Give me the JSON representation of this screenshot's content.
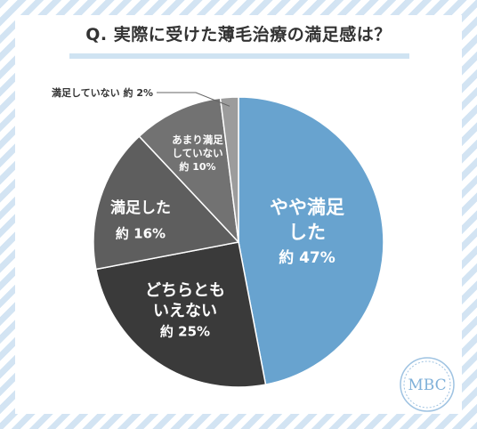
{
  "title": "Q. 実際に受けた薄毛治療の満足感は？",
  "logo_text": "MBC",
  "colors": {
    "frame_stripe": "#d3e4f3",
    "title_underline": "#cfe3f2",
    "slice_colors": [
      "#68a3cf",
      "#3a3a3a",
      "#5e5e5e",
      "#727272",
      "#9c9c9c"
    ]
  },
  "chart_data": {
    "type": "pie",
    "title": "Q. 実際に受けた薄毛治療の満足感は？",
    "start": "12 o'clock, clockwise",
    "slices": [
      {
        "label": "やや満足した",
        "value": 47,
        "value_label": "約 47%",
        "lines": [
          "やや満足",
          "した"
        ]
      },
      {
        "label": "どちらともいえない",
        "value": 25,
        "value_label": "約 25%",
        "lines": [
          "どちらとも",
          "いえない"
        ]
      },
      {
        "label": "満足した",
        "value": 16,
        "value_label": "約 16%",
        "lines": [
          "満足した"
        ]
      },
      {
        "label": "あまり満足していない",
        "value": 10,
        "value_label": "約 10%",
        "lines": [
          "あまり満足",
          "していない"
        ]
      },
      {
        "label": "満足していない",
        "value": 2,
        "value_label": "約 2%",
        "lines": [
          "満足していない"
        ]
      }
    ]
  }
}
